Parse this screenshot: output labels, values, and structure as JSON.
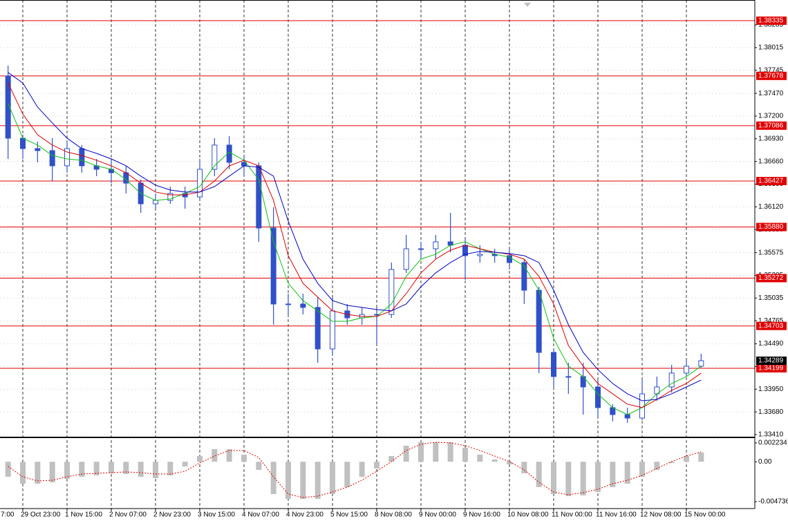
{
  "chart_data": [
    {
      "type": "candlestick",
      "first_label": "7:00",
      "categories": [
        null,
        "29 Oct 23:00",
        null,
        null,
        "1 Nov 15:00",
        null,
        null,
        "2 Nov 07:00",
        null,
        null,
        "2 Nov 23:00",
        null,
        null,
        "3 Nov 15:00",
        null,
        null,
        "4 Nov 07:00",
        null,
        null,
        "4 Nov 23:00",
        null,
        null,
        "5 Nov 15:00",
        null,
        null,
        "8 Nov 08:00",
        null,
        null,
        "9 Nov 00:00",
        null,
        null,
        "9 Nov 16:00",
        null,
        null,
        "10 Nov 08:00",
        null,
        null,
        "11 Nov 00:00",
        null,
        null,
        "11 Nov 16:00",
        null,
        null,
        "12 Nov 08:00",
        null,
        null,
        "15 Nov 00:00",
        null
      ],
      "open": [
        1.37677,
        1.36937,
        1.36813,
        1.36789,
        1.36608,
        1.36813,
        1.36608,
        1.36567,
        1.36526,
        1.36402,
        1.36156,
        1.36197,
        1.36279,
        1.36238,
        1.36567,
        1.36855,
        1.36649,
        1.36608,
        1.35868,
        1.34964,
        1.34964,
        1.34923,
        1.34429,
        1.34882,
        1.34799,
        1.3484,
        1.3484,
        1.35375,
        1.35621,
        1.35621,
        1.35704,
        1.35663,
        1.35539,
        1.35556,
        1.35539,
        1.35457,
        1.35128,
        1.34388,
        1.34101,
        1.34101,
        1.33977,
        1.33731,
        1.33648,
        1.33607,
        1.33895,
        1.33977,
        1.34142,
        1.34224
      ],
      "high": [
        1.378,
        1.36978,
        1.36896,
        1.36937,
        1.36896,
        1.36855,
        1.3669,
        1.3669,
        1.36608,
        1.36444,
        1.36279,
        1.36361,
        1.36361,
        1.3669,
        1.36937,
        1.36961,
        1.36731,
        1.36649,
        1.36115,
        1.35087,
        1.35087,
        1.35046,
        1.35046,
        1.34964,
        1.34923,
        1.34923,
        1.35457,
        1.35786,
        1.35704,
        1.35786,
        1.36049,
        1.35745,
        1.35663,
        1.35621,
        1.35621,
        1.35498,
        1.35169,
        1.34429,
        1.34265,
        1.34265,
        1.34059,
        1.33772,
        1.33731,
        1.34059,
        1.34101,
        1.3424,
        1.34306,
        1.34372
      ],
      "low": [
        1.3669,
        1.3669,
        1.36649,
        1.36427,
        1.36526,
        1.36526,
        1.36485,
        1.36402,
        1.36279,
        1.36049,
        1.36098,
        1.36156,
        1.36098,
        1.36197,
        1.36485,
        1.36567,
        1.36485,
        1.35704,
        1.34717,
        1.3484,
        1.3484,
        1.34265,
        1.34347,
        1.34717,
        1.34717,
        1.34487,
        1.34799,
        1.35334,
        1.35498,
        1.35498,
        1.3558,
        1.35251,
        1.35457,
        1.35457,
        1.35375,
        1.34964,
        1.34142,
        1.33977,
        1.33895,
        1.33648,
        1.33607,
        1.33566,
        1.3355,
        1.33583,
        1.33813,
        1.33911,
        1.34101,
        1.34207
      ],
      "close": [
        1.36937,
        1.36813,
        1.36789,
        1.36608,
        1.36813,
        1.36608,
        1.36567,
        1.36526,
        1.36402,
        1.36156,
        1.36197,
        1.36279,
        1.36238,
        1.36567,
        1.36855,
        1.36649,
        1.36608,
        1.35868,
        1.34964,
        1.34964,
        1.34923,
        1.34429,
        1.34882,
        1.34799,
        1.3484,
        1.3484,
        1.35375,
        1.35621,
        1.35621,
        1.35704,
        1.35663,
        1.35539,
        1.35556,
        1.35539,
        1.35457,
        1.35128,
        1.34388,
        1.34101,
        1.34101,
        1.33977,
        1.33731,
        1.33648,
        1.33607,
        1.33895,
        1.33977,
        1.34142,
        1.34224,
        1.34289
      ],
      "color": "#3050c8",
      "lines": [
        {
          "color": "#10c010",
          "values": [
            1.37348,
            1.36937,
            1.36855,
            1.36731,
            1.3669,
            1.36674,
            1.36608,
            1.36567,
            1.36444,
            1.36279,
            1.36197,
            1.36213,
            1.36279,
            1.36361,
            1.36608,
            1.36772,
            1.36674,
            1.36444,
            1.35704,
            1.3521,
            1.35005,
            1.34882,
            1.34758,
            1.34758,
            1.34799,
            1.34816,
            1.34964,
            1.35293,
            1.35498,
            1.35556,
            1.35663,
            1.35704,
            1.35621,
            1.35556,
            1.35523,
            1.35416,
            1.35128,
            1.34553,
            1.34224,
            1.34101,
            1.33895,
            1.33731,
            1.33648,
            1.33731,
            1.33895,
            1.34018,
            1.34101,
            1.34224
          ]
        },
        {
          "color": "#d80000",
          "values": [
            1.37594,
            1.37224,
            1.36978,
            1.36855,
            1.36772,
            1.36731,
            1.36674,
            1.36608,
            1.36526,
            1.36402,
            1.36296,
            1.36263,
            1.36263,
            1.36296,
            1.36427,
            1.36608,
            1.36674,
            1.36608,
            1.36197,
            1.35539,
            1.3521,
            1.35046,
            1.34882,
            1.3484,
            1.34816,
            1.34816,
            1.34882,
            1.35087,
            1.35334,
            1.35498,
            1.35605,
            1.35663,
            1.35621,
            1.3558,
            1.35556,
            1.35498,
            1.35293,
            1.34964,
            1.3447,
            1.34224,
            1.34018,
            1.33895,
            1.33772,
            1.33731,
            1.33829,
            1.33936,
            1.34018,
            1.34142
          ]
        },
        {
          "color": "#0000c0",
          "values": [
            1.37718,
            1.37594,
            1.37307,
            1.37118,
            1.36937,
            1.36813,
            1.36756,
            1.3669,
            1.36608,
            1.36485,
            1.36378,
            1.3632,
            1.36296,
            1.36296,
            1.36361,
            1.36485,
            1.36608,
            1.36591,
            1.36485,
            1.3595,
            1.35498,
            1.3521,
            1.35005,
            1.34947,
            1.34923,
            1.34898,
            1.34882,
            1.34964,
            1.35169,
            1.35334,
            1.35457,
            1.35556,
            1.35589,
            1.3558,
            1.35564,
            1.35539,
            1.35457,
            1.35128,
            1.34717,
            1.34388,
            1.34183,
            1.34018,
            1.33895,
            1.33813,
            1.33829,
            1.33895,
            1.33977,
            1.34059
          ]
        }
      ],
      "ylim": [
        1.33385,
        1.38581
      ],
      "yticks": [
        1.38285,
        1.38015,
        1.37745,
        {
          "value": 1.3747,
          "label": "1.37470"
        },
        {
          "value": 1.372,
          "label": "1.37200"
        },
        {
          "value": 1.3693,
          "label": "1.36930"
        },
        {
          "value": 1.3666,
          "label": "1.36660"
        },
        {
          "value": 1.3639,
          "label": "1.36390"
        },
        {
          "value": 1.3612,
          "label": "1.36120"
        },
        {
          "value": 1.3585,
          "label": "1.35850"
        },
        1.35575,
        1.35305,
        1.35035,
        1.34765,
        {
          "value": 1.3449,
          "label": "1.34490"
        },
        {
          "value": 1.3422,
          "label": "1.34220"
        },
        {
          "value": 1.3395,
          "label": "1.33950"
        },
        {
          "value": 1.3368,
          "label": "1.33680"
        },
        {
          "value": 1.3341,
          "label": "1.33410"
        }
      ],
      "levels": [
        1.38335,
        1.37678,
        1.37086,
        1.36427,
        {
          "value": 1.3588,
          "label": "1.35880"
        },
        1.35272,
        1.34703,
        1.34199
      ],
      "level_color": "#e00000",
      "current_price": 1.34289,
      "grid": true
    },
    {
      "type": "macd",
      "histogram": [
        -0.001784,
        -0.002604,
        -0.002604,
        -0.00244,
        -0.00203,
        -0.001784,
        -0.00162,
        -0.001374,
        -0.001456,
        -0.001784,
        -0.001948,
        -0.00162,
        -0.000554,
        0.000676,
        0.001496,
        0.001496,
        0.00084,
        -0.000964,
        -0.003834,
        -0.004408,
        -0.004408,
        -0.004408,
        -0.003834,
        -0.003014,
        -0.001784,
        -0.0008,
        0.000676,
        0.001906,
        0.002316,
        0.002316,
        0.002316,
        0.00166,
        0.00084,
        0.000266,
        -0.000308,
        -0.001374,
        -0.003014,
        -0.003834,
        -0.00408,
        -0.003998,
        -0.003588,
        -0.003014,
        -0.002604,
        -0.001784,
        -0.000964,
        -0.000144,
        0.000676,
        0.001086
      ],
      "histogram_color": "#c0c0c0",
      "signal": [
        -0.000554,
        -0.001784,
        -0.002276,
        -0.002194,
        -0.001784,
        -0.001456,
        -0.001374,
        -0.001292,
        -0.00121,
        -0.001292,
        -0.001456,
        -0.001456,
        -0.001128,
        -0.000144,
        0.000676,
        0.001332,
        0.001332,
        0.000512,
        -0.001784,
        -0.003834,
        -0.004244,
        -0.00408,
        -0.003588,
        -0.003014,
        -0.002194,
        -0.001128,
        2e-05,
        0.001332,
        0.00207,
        0.002316,
        0.002234,
        0.001906,
        0.001332,
        0.000676,
        2e-05,
        -0.000964,
        -0.00244,
        -0.003588,
        -0.003916,
        -0.00367,
        -0.00326,
        -0.002604,
        -0.002194,
        -0.00162,
        -0.0008,
        2e-05,
        0.000676,
        0.001168
      ],
      "signal_color": "#e00000",
      "ylim": [
        -0.005474,
        0.002808
      ],
      "yticks": [
        0.002234,
        {
          "value": 0,
          "label": "0.00"
        },
        -0.004736
      ]
    }
  ]
}
